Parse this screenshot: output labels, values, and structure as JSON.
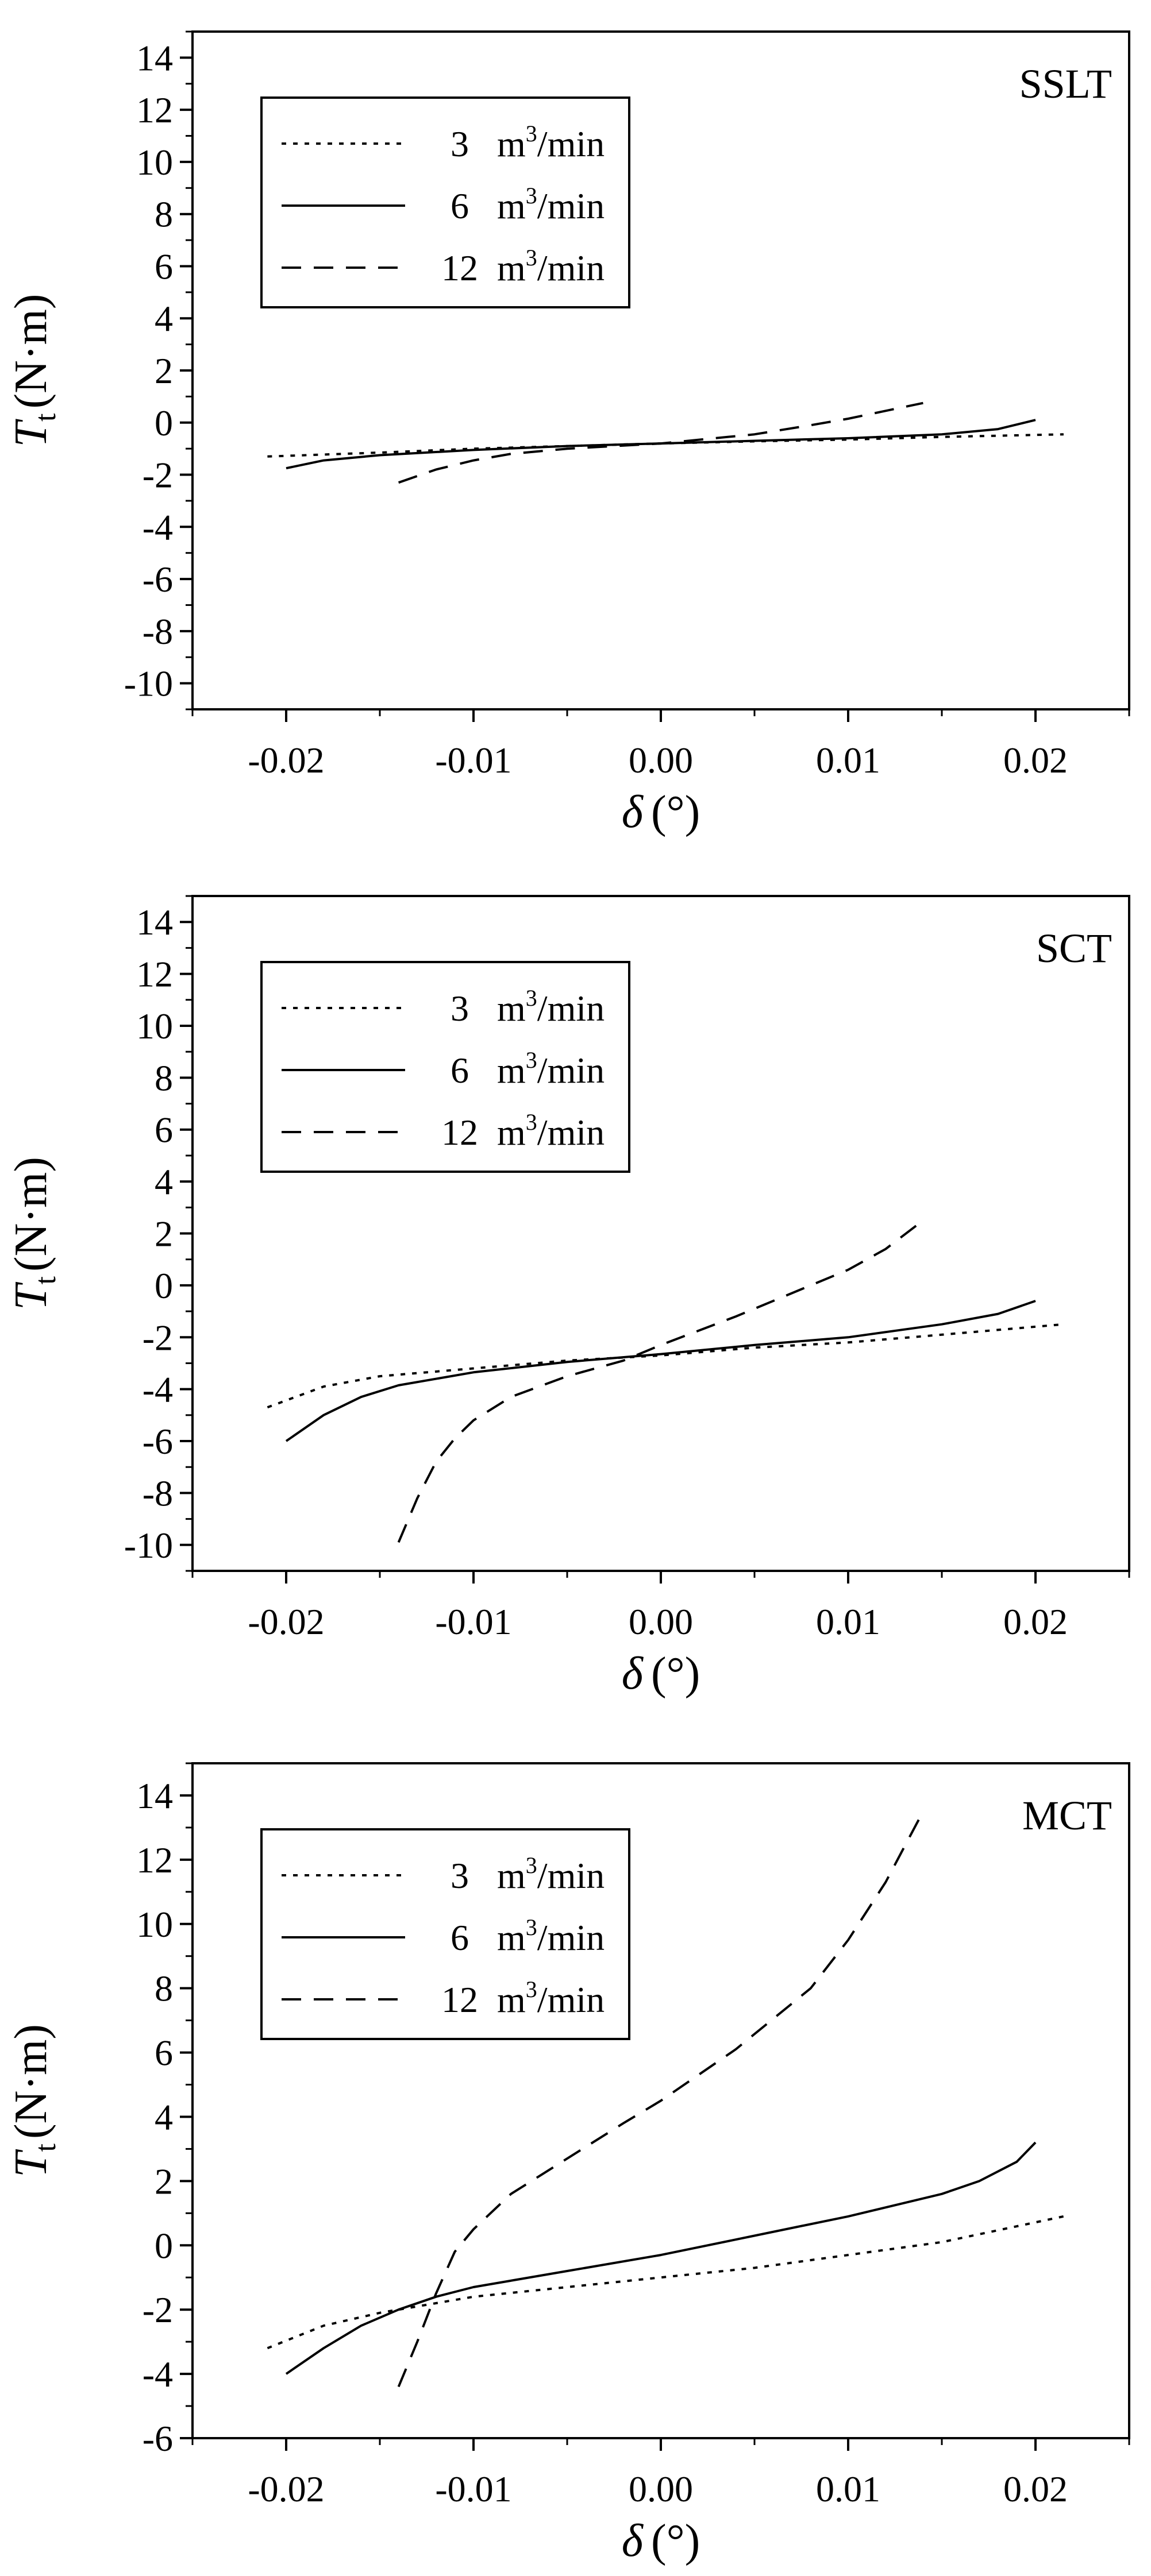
{
  "chart_data": [
    {
      "type": "line",
      "panel_label": "SSLT",
      "xlabel": {
        "symbol": "δ",
        "unit": "(°)"
      },
      "ylabel": {
        "symbol": "T",
        "subscript": "t",
        "unit": "(N·m)"
      },
      "xlim": [
        -0.025,
        0.025
      ],
      "ylim": [
        -11,
        15
      ],
      "x_ticks": [
        -0.02,
        -0.01,
        0.0,
        0.01,
        0.02
      ],
      "x_tick_labels": [
        "-0.02",
        "-0.01",
        "0.00",
        "0.01",
        "0.02"
      ],
      "y_ticks": [
        -10,
        -8,
        -6,
        -4,
        -2,
        0,
        2,
        4,
        6,
        8,
        10,
        12,
        14
      ],
      "y_tick_labels": [
        "-10",
        "-8",
        "-6",
        "-4",
        "-2",
        "0",
        "2",
        "4",
        "6",
        "8",
        "10",
        "12",
        "14"
      ],
      "legend": {
        "placement": "top-left",
        "unit_base": "m",
        "unit_exp": "3",
        "unit_tail": "/min"
      },
      "series": [
        {
          "name": "3",
          "style": "dotted",
          "x": [
            -0.021,
            -0.015,
            -0.01,
            -0.005,
            0.0,
            0.005,
            0.01,
            0.015,
            0.0215
          ],
          "y": [
            -1.3,
            -1.15,
            -1.0,
            -0.9,
            -0.8,
            -0.72,
            -0.65,
            -0.55,
            -0.45
          ]
        },
        {
          "name": "6",
          "style": "solid",
          "x": [
            -0.02,
            -0.018,
            -0.015,
            -0.01,
            -0.005,
            0.0,
            0.005,
            0.01,
            0.015,
            0.018,
            0.02
          ],
          "y": [
            -1.75,
            -1.45,
            -1.25,
            -1.05,
            -0.9,
            -0.8,
            -0.7,
            -0.6,
            -0.45,
            -0.25,
            0.1
          ]
        },
        {
          "name": "12",
          "style": "dashed",
          "x": [
            -0.014,
            -0.012,
            -0.01,
            -0.008,
            -0.005,
            0.0,
            0.005,
            0.008,
            0.01,
            0.012,
            0.014
          ],
          "y": [
            -2.3,
            -1.8,
            -1.45,
            -1.2,
            -1.0,
            -0.8,
            -0.45,
            -0.1,
            0.15,
            0.45,
            0.75
          ]
        }
      ]
    },
    {
      "type": "line",
      "panel_label": "SCT",
      "xlabel": {
        "symbol": "δ",
        "unit": "(°)"
      },
      "ylabel": {
        "symbol": "T",
        "subscript": "t",
        "unit": "(N·m)"
      },
      "xlim": [
        -0.025,
        0.025
      ],
      "ylim": [
        -11,
        15
      ],
      "x_ticks": [
        -0.02,
        -0.01,
        0.0,
        0.01,
        0.02
      ],
      "x_tick_labels": [
        "-0.02",
        "-0.01",
        "0.00",
        "0.01",
        "0.02"
      ],
      "y_ticks": [
        -10,
        -8,
        -6,
        -4,
        -2,
        0,
        2,
        4,
        6,
        8,
        10,
        12,
        14
      ],
      "y_tick_labels": [
        "-10",
        "-8",
        "-6",
        "-4",
        "-2",
        "0",
        "2",
        "4",
        "6",
        "8",
        "10",
        "12",
        "14"
      ],
      "legend": {
        "placement": "top-left",
        "unit_base": "m",
        "unit_exp": "3",
        "unit_tail": "/min"
      },
      "series": [
        {
          "name": "3",
          "style": "dotted",
          "x": [
            -0.021,
            -0.018,
            -0.015,
            -0.01,
            -0.005,
            0.0,
            0.005,
            0.01,
            0.015,
            0.0215
          ],
          "y": [
            -4.7,
            -3.9,
            -3.5,
            -3.2,
            -2.9,
            -2.7,
            -2.4,
            -2.2,
            -1.9,
            -1.5
          ]
        },
        {
          "name": "6",
          "style": "solid",
          "x": [
            -0.02,
            -0.018,
            -0.016,
            -0.014,
            -0.01,
            -0.005,
            0.0,
            0.005,
            0.01,
            0.015,
            0.018,
            0.02
          ],
          "y": [
            -6.0,
            -5.0,
            -4.3,
            -3.85,
            -3.35,
            -2.95,
            -2.65,
            -2.3,
            -2.0,
            -1.5,
            -1.1,
            -0.6
          ]
        },
        {
          "name": "12",
          "style": "dashed",
          "x": [
            -0.014,
            -0.013,
            -0.012,
            -0.011,
            -0.01,
            -0.008,
            -0.005,
            -0.002,
            0.0,
            0.004,
            0.008,
            0.01,
            0.012,
            0.014
          ],
          "y": [
            -9.9,
            -8.2,
            -6.8,
            -5.9,
            -5.2,
            -4.3,
            -3.5,
            -2.9,
            -2.3,
            -1.2,
            0.0,
            0.6,
            1.4,
            2.5
          ]
        }
      ]
    },
    {
      "type": "line",
      "panel_label": "MCT",
      "xlabel": {
        "symbol": "δ",
        "unit": "(°)"
      },
      "ylabel": {
        "symbol": "T",
        "subscript": "t",
        "unit": "(N·m)"
      },
      "xlim": [
        -0.025,
        0.025
      ],
      "ylim": [
        -6,
        15
      ],
      "x_ticks": [
        -0.02,
        -0.01,
        0.0,
        0.01,
        0.02
      ],
      "x_tick_labels": [
        "-0.02",
        "-0.01",
        "0.00",
        "0.01",
        "0.02"
      ],
      "y_ticks": [
        -6,
        -4,
        -2,
        0,
        2,
        4,
        6,
        8,
        10,
        12,
        14
      ],
      "y_tick_labels": [
        "-6",
        "-4",
        "-2",
        "0",
        "2",
        "4",
        "6",
        "8",
        "10",
        "12",
        "14"
      ],
      "legend": {
        "placement": "top-left",
        "unit_base": "m",
        "unit_exp": "3",
        "unit_tail": "/min"
      },
      "series": [
        {
          "name": "3",
          "style": "dotted",
          "x": [
            -0.021,
            -0.018,
            -0.015,
            -0.012,
            -0.01,
            -0.005,
            0.0,
            0.005,
            0.01,
            0.015,
            0.0215
          ],
          "y": [
            -3.2,
            -2.5,
            -2.1,
            -1.8,
            -1.6,
            -1.3,
            -1.0,
            -0.7,
            -0.3,
            0.1,
            0.9
          ]
        },
        {
          "name": "6",
          "style": "solid",
          "x": [
            -0.02,
            -0.018,
            -0.016,
            -0.014,
            -0.012,
            -0.01,
            -0.005,
            0.0,
            0.005,
            0.01,
            0.015,
            0.017,
            0.019,
            0.02
          ],
          "y": [
            -4.0,
            -3.2,
            -2.5,
            -2.0,
            -1.6,
            -1.3,
            -0.8,
            -0.3,
            0.3,
            0.9,
            1.6,
            2.0,
            2.6,
            3.2
          ]
        },
        {
          "name": "12",
          "style": "dashed",
          "x": [
            -0.014,
            -0.013,
            -0.012,
            -0.011,
            -0.01,
            -0.008,
            -0.005,
            -0.002,
            0.0,
            0.004,
            0.008,
            0.01,
            0.012,
            0.014
          ],
          "y": [
            -4.4,
            -3.0,
            -1.5,
            -0.2,
            0.5,
            1.6,
            2.7,
            3.8,
            4.5,
            6.1,
            8.0,
            9.5,
            11.3,
            13.5
          ]
        }
      ]
    }
  ]
}
